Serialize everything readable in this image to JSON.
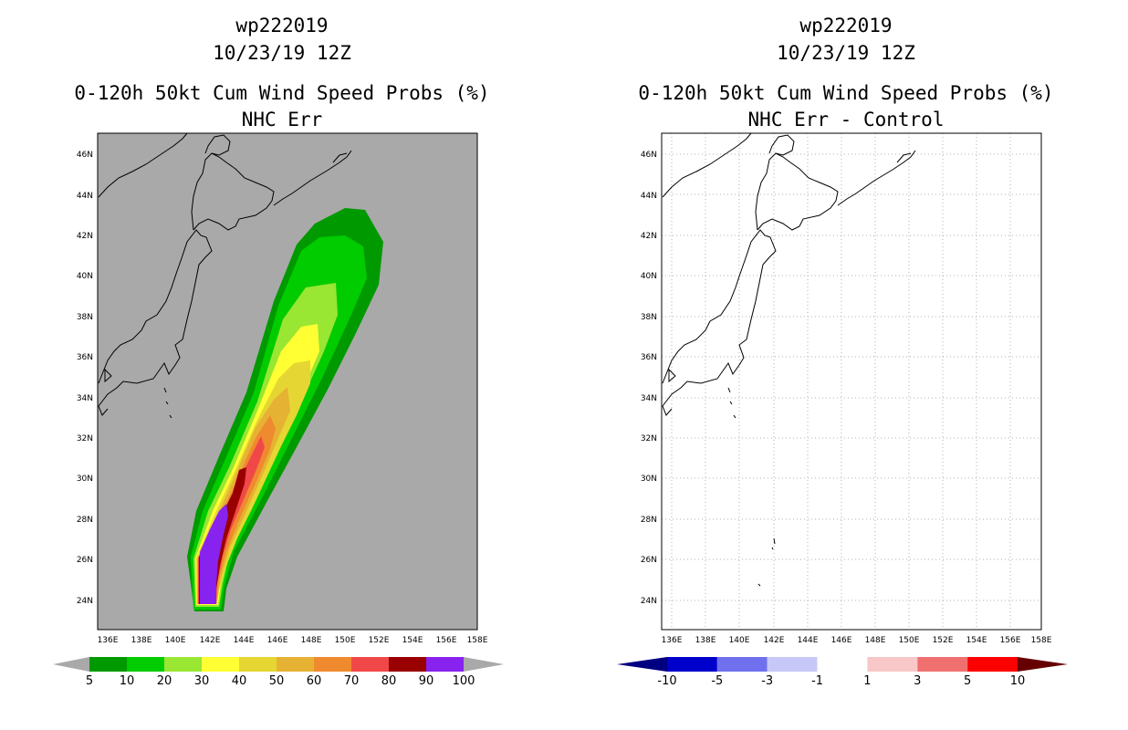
{
  "left": {
    "title_line1": "wp222019",
    "title_line2": "10/23/19 12Z",
    "title_line3": "0-120h 50kt Cum Wind Speed Probs (%)",
    "title_line4": "NHC Err",
    "x_ticks": [
      "136E",
      "138E",
      "140E",
      "142E",
      "144E",
      "146E",
      "148E",
      "150E",
      "152E",
      "154E",
      "156E",
      "158E"
    ],
    "y_ticks": [
      "46N",
      "44N",
      "42N",
      "40N",
      "38N",
      "36N",
      "34N",
      "32N",
      "30N",
      "28N",
      "26N",
      "24N"
    ],
    "colorbar": {
      "labels": [
        "5",
        "10",
        "20",
        "30",
        "40",
        "50",
        "60",
        "70",
        "80",
        "90",
        "100"
      ],
      "colors": [
        "#009900",
        "#00cc00",
        "#99e633",
        "#ffff33",
        "#e6d633",
        "#e6b233",
        "#f08a2e",
        "#f04848",
        "#990000",
        "#8822ee"
      ]
    }
  },
  "right": {
    "title_line1": "wp222019",
    "title_line2": "10/23/19 12Z",
    "title_line3": "0-120h 50kt Cum Wind Speed Probs (%)",
    "title_line4": "NHC Err - Control",
    "x_ticks": [
      "136E",
      "138E",
      "140E",
      "142E",
      "144E",
      "146E",
      "148E",
      "150E",
      "152E",
      "154E",
      "156E",
      "158E"
    ],
    "y_ticks": [
      "46N",
      "44N",
      "42N",
      "40N",
      "38N",
      "36N",
      "34N",
      "32N",
      "30N",
      "28N",
      "26N",
      "24N"
    ],
    "colorbar": {
      "labels": [
        "-10",
        "-5",
        "-3",
        "-1",
        "1",
        "3",
        "5",
        "10"
      ],
      "colors": [
        "#0000cc",
        "#7070ee",
        "#c8c8f8",
        "#ffffff",
        "#f8c8c8",
        "#f07070",
        "#ff0000"
      ],
      "end_left": "#000080",
      "end_right": "#660000"
    }
  }
}
